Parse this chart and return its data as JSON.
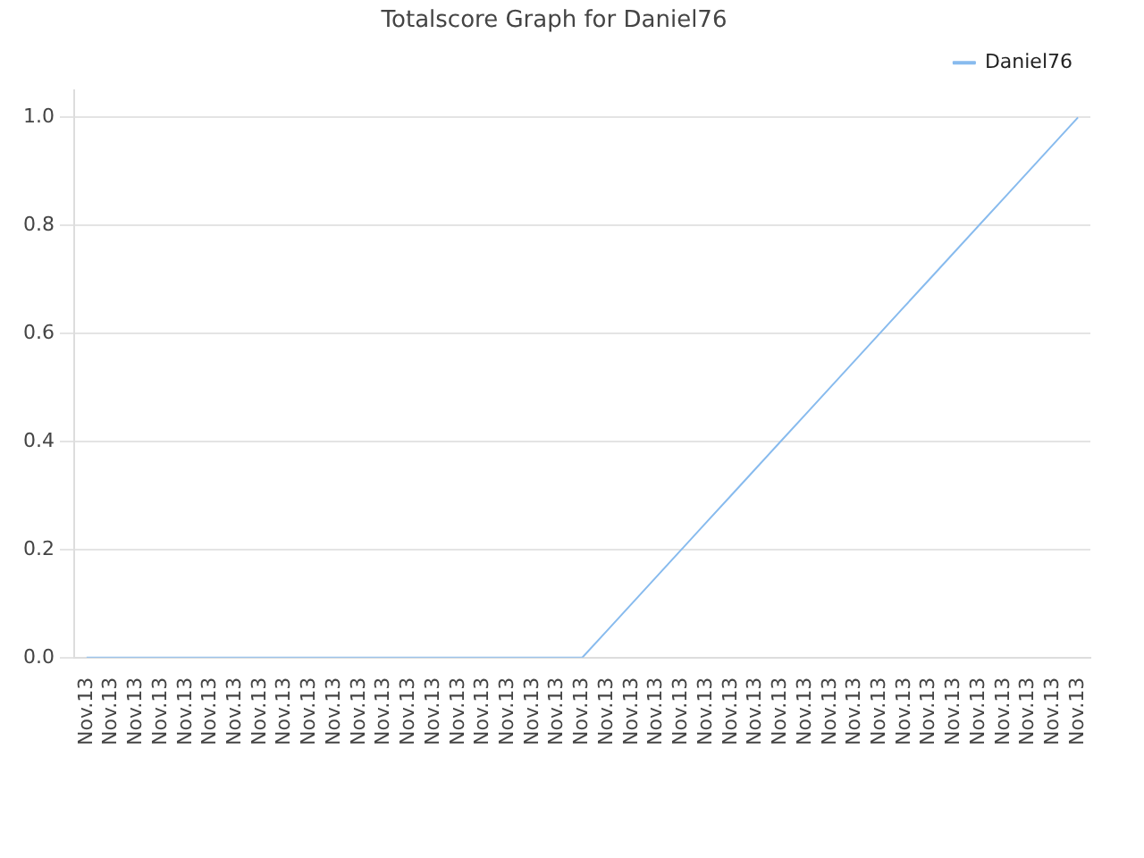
{
  "chart_data": {
    "type": "line",
    "title": "Totalscore Graph for Daniel76",
    "categories": [
      "Nov.13",
      "Nov.13",
      "Nov.13",
      "Nov.13",
      "Nov.13",
      "Nov.13",
      "Nov.13",
      "Nov.13",
      "Nov.13",
      "Nov.13",
      "Nov.13",
      "Nov.13",
      "Nov.13",
      "Nov.13",
      "Nov.13",
      "Nov.13",
      "Nov.13",
      "Nov.13",
      "Nov.13",
      "Nov.13",
      "Nov.13",
      "Nov.13",
      "Nov.13",
      "Nov.13",
      "Nov.13",
      "Nov.13",
      "Nov.13",
      "Nov.13",
      "Nov.13",
      "Nov.13",
      "Nov.13",
      "Nov.13",
      "Nov.13",
      "Nov.13",
      "Nov.13",
      "Nov.13",
      "Nov.13",
      "Nov.13",
      "Nov.13",
      "Nov.13",
      "Nov.13"
    ],
    "series": [
      {
        "name": "Daniel76",
        "color": "#88bbee",
        "values": [
          0,
          0,
          0,
          0,
          0,
          0,
          0,
          0,
          0,
          0,
          0,
          0,
          0,
          0,
          0,
          0,
          0,
          0,
          0,
          0,
          0,
          0.05,
          0.1,
          0.15,
          0.2,
          0.25,
          0.3,
          0.35,
          0.4,
          0.45,
          0.5,
          0.55,
          0.6,
          0.65,
          0.7,
          0.75,
          0.8,
          0.85,
          0.9,
          0.95,
          1.0
        ]
      }
    ],
    "ylim": [
      0,
      1.05
    ],
    "yticks": [
      {
        "value": 0,
        "label": "0.0"
      },
      0.2,
      0.4,
      0.6,
      0.8,
      {
        "value": 1,
        "label": "1.0"
      }
    ],
    "grid": "y",
    "legend": "top right",
    "marker": "none",
    "line_style": "solid"
  }
}
